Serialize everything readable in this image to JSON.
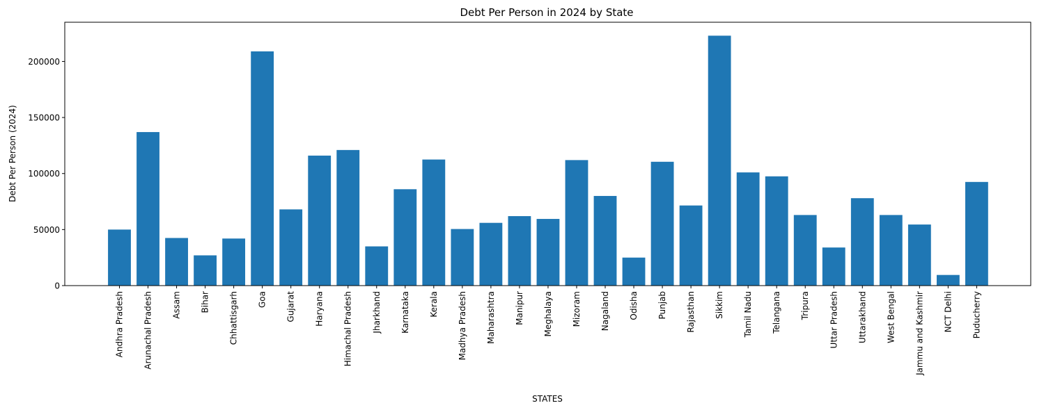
{
  "chart_data": {
    "type": "bar",
    "title": "Debt Per Person in 2024 by State",
    "xlabel": "STATES",
    "ylabel": "Debt Per Person (2024)",
    "ylim": [
      0,
      235000
    ],
    "yticks": [
      0,
      50000,
      100000,
      150000,
      200000
    ],
    "grid": false,
    "color": "#1f77b4",
    "categories": [
      "Andhra Pradesh",
      "Arunachal Pradesh",
      "Assam",
      "Bihar",
      "Chhattisgarh",
      "Goa",
      "Gujarat",
      "Haryana",
      "Himachal Pradesh",
      "Jharkhand",
      "Karnataka",
      "Kerala",
      "Madhya Pradesh",
      "Maharashtra",
      "Manipur",
      "Meghalaya",
      "Mizoram",
      "Nagaland",
      "Odisha",
      "Punjab",
      "Rajasthan",
      "Sikkim",
      "Tamil Nadu",
      "Telangana",
      "Tripura",
      "Uttar Pradesh",
      "Uttarakhand",
      "West Bengal",
      "Jammu and Kashmir",
      "NCT Delhi",
      "Puducherry"
    ],
    "values": [
      50000,
      137000,
      42500,
      27000,
      42000,
      209000,
      68000,
      116000,
      121000,
      35000,
      86000,
      112500,
      50500,
      56000,
      62000,
      59500,
      112000,
      80000,
      25000,
      110500,
      71500,
      223000,
      101000,
      97500,
      63000,
      34000,
      78000,
      63000,
      54500,
      9500,
      92500
    ]
  }
}
